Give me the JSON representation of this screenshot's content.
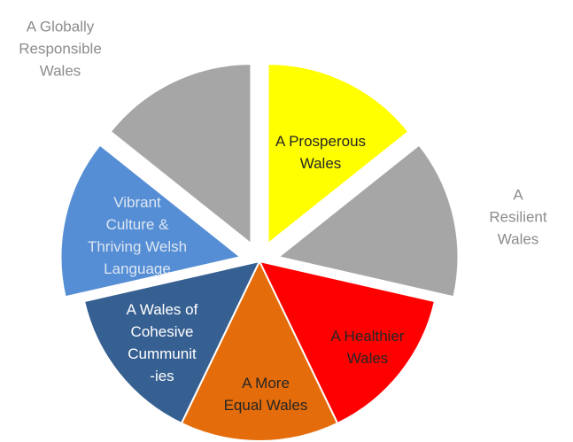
{
  "chart_data": {
    "type": "pie",
    "categories": [
      "A Prosperous\nWales",
      "A Resilient\nWales",
      "A Healthier\nWales",
      "A More\nEqual Wales",
      "A Wales of\nCohesive\nCummunit\n-ies",
      "Vibrant\nCulture &\nThriving Welsh\nLanguage",
      "A Globally\nResponsible\nWales"
    ],
    "values": [
      14.3,
      14.3,
      14.3,
      14.3,
      14.3,
      14.3,
      14.3
    ],
    "colors": [
      "#ffff00",
      "#a6a6a6",
      "#ff0000",
      "#e46c0a",
      "#376092",
      "#558ed5",
      "#a6a6a6"
    ],
    "exploded": [
      true,
      true,
      false,
      false,
      false,
      true,
      true
    ]
  }
}
